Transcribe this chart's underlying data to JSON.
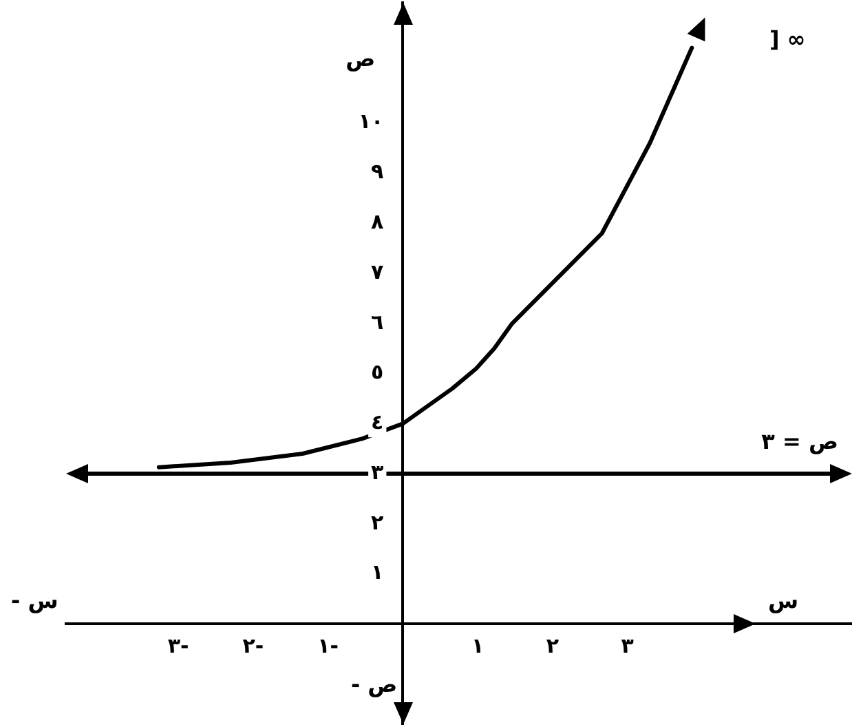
{
  "chart_data": {
    "type": "line",
    "xlabel": "س",
    "ylabel": "ص",
    "annotations": [
      "- س",
      "- ص",
      "] ∞"
    ],
    "x": [
      -3.26,
      -2.3,
      -1.34,
      -0.54,
      0,
      0.66,
      0.98,
      1.22,
      1.46,
      2.66,
      3.3,
      3.86
    ],
    "series": [
      {
        "color": "#000000",
        "values": [
          3.13,
          3.22,
          3.4,
          3.7,
          4.0,
          4.7,
          5.1,
          5.5,
          6.0,
          7.8,
          9.6,
          11.5
        ]
      }
    ],
    "xlim": [
      -4.5,
      6
    ],
    "ylim": [
      -2,
      12.4
    ],
    "xticks": [
      {
        "value": -3,
        "label": "٣-"
      },
      {
        "value": -2,
        "label": "٢-"
      },
      {
        "value": -1,
        "label": "١-"
      },
      {
        "value": 1,
        "label": "١"
      },
      {
        "value": 2,
        "label": "٢"
      },
      {
        "value": 3,
        "label": "٣"
      }
    ],
    "yticks": [
      {
        "value": 1,
        "label": "١"
      },
      {
        "value": 2,
        "label": "٢"
      },
      {
        "value": 3,
        "label": "٣"
      },
      {
        "value": 4,
        "label": "٤"
      },
      {
        "value": 5,
        "label": "٥"
      },
      {
        "value": 6,
        "label": "٦"
      },
      {
        "value": 7,
        "label": "٧"
      },
      {
        "value": 8,
        "label": "٨"
      },
      {
        "value": 9,
        "label": "٩"
      },
      {
        "value": 10,
        "label": "١٠"
      }
    ],
    "ref_lines": [
      {
        "axis": "y",
        "value": 3,
        "label": "ص = ٣",
        "color": "#000000"
      }
    ],
    "grid": false,
    "legend": false,
    "marker": "none",
    "line_style": "solid"
  }
}
